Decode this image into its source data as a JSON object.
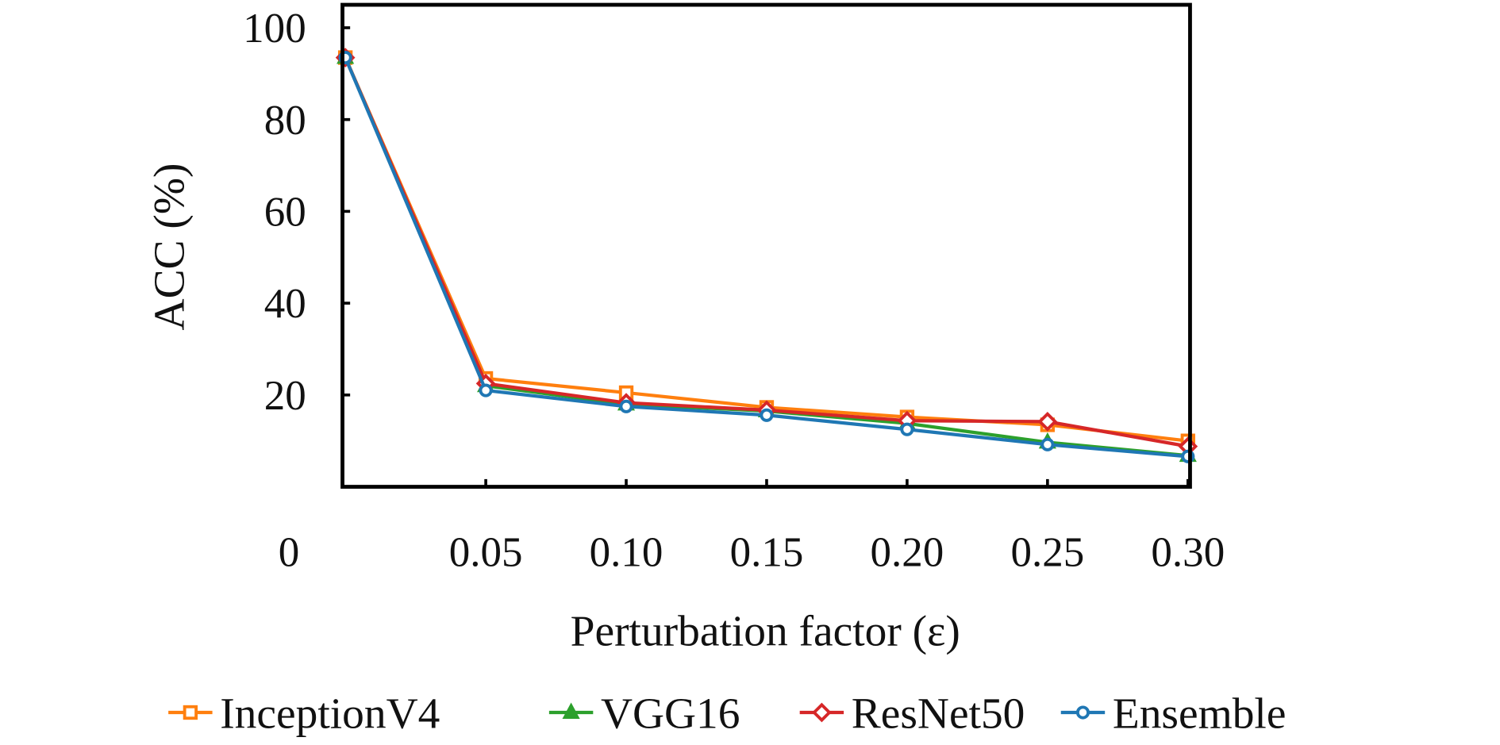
{
  "chart_data": {
    "type": "line",
    "title": "",
    "xlabel": "Perturbation factor (ε)",
    "ylabel": "ACC (%)",
    "x": [
      0,
      0.05,
      0.1,
      0.15,
      0.2,
      0.25,
      0.3
    ],
    "x_tick_labels": [
      "0",
      "0.05",
      "0.10",
      "0.15",
      "0.20",
      "0.25",
      "0.30"
    ],
    "y_ticks": [
      20,
      40,
      60,
      80,
      100
    ],
    "y_tick_labels": [
      "20",
      "40",
      "60",
      "80",
      "100"
    ],
    "ylim": [
      0,
      105
    ],
    "grid": false,
    "legend_position": "bottom",
    "series": [
      {
        "name": "InceptionV4",
        "color": "#ff7f0e",
        "marker": "square",
        "values": [
          93.5,
          23.6,
          20.5,
          17.3,
          15.2,
          13.5,
          10.0
        ]
      },
      {
        "name": "VGG16",
        "color": "#2ca02c",
        "marker": "triangle",
        "values": [
          93.5,
          22.0,
          18.0,
          16.5,
          13.8,
          9.7,
          6.8
        ]
      },
      {
        "name": "ResNet50",
        "color": "#d62728",
        "marker": "diamond",
        "values": [
          93.5,
          22.5,
          18.3,
          16.7,
          14.4,
          14.2,
          8.8
        ]
      },
      {
        "name": "Ensemble",
        "color": "#1f77b4",
        "marker": "circle",
        "values": [
          93.5,
          21.0,
          17.5,
          15.6,
          12.5,
          9.2,
          6.6
        ]
      }
    ]
  }
}
